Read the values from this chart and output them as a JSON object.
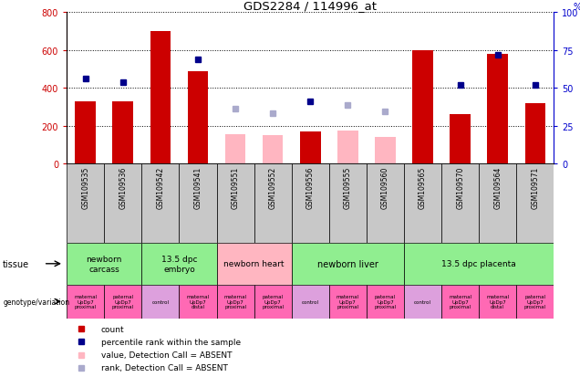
{
  "title": "GDS2284 / 114996_at",
  "samples": [
    "GSM109535",
    "GSM109536",
    "GSM109542",
    "GSM109541",
    "GSM109551",
    "GSM109552",
    "GSM109556",
    "GSM109555",
    "GSM109560",
    "GSM109565",
    "GSM109570",
    "GSM109564",
    "GSM109571"
  ],
  "count_values": [
    330,
    330,
    700,
    490,
    null,
    null,
    170,
    null,
    null,
    600,
    260,
    580,
    320
  ],
  "count_absent": [
    null,
    null,
    null,
    null,
    155,
    150,
    null,
    175,
    140,
    null,
    null,
    null,
    null
  ],
  "rank_values": [
    450,
    430,
    null,
    550,
    null,
    null,
    330,
    null,
    null,
    null,
    415,
    575,
    415
  ],
  "rank_absent": [
    null,
    null,
    null,
    null,
    290,
    265,
    null,
    310,
    275,
    null,
    null,
    null,
    null
  ],
  "ylim_left": [
    0,
    800
  ],
  "ylim_right": [
    0,
    100
  ],
  "yticks_left": [
    0,
    200,
    400,
    600,
    800
  ],
  "yticks_right": [
    0,
    25,
    50,
    75,
    100
  ],
  "tissue_groups": [
    {
      "label": "newborn\ncarcass",
      "start": 0,
      "end": 2,
      "color": "#90EE90"
    },
    {
      "label": "13.5 dpc\nembryo",
      "start": 2,
      "end": 4,
      "color": "#90EE90"
    },
    {
      "label": "newborn heart",
      "start": 4,
      "end": 6,
      "color": "#FFB6C1"
    },
    {
      "label": "newborn liver",
      "start": 6,
      "end": 9,
      "color": "#90EE90"
    },
    {
      "label": "13.5 dpc placenta",
      "start": 9,
      "end": 13,
      "color": "#90EE90"
    }
  ],
  "genotype_labels": [
    "maternal\nUpDp7\nproximal",
    "paternal\nUpDp7\nproximal",
    "control",
    "maternal\nUpDp7\ndistal",
    "maternal\nUpDp7\nproximal",
    "paternal\nUpDp7\nproximal",
    "control",
    "maternal\nUpDp7\nproximal",
    "paternal\nUpDp7\nproximal",
    "control",
    "maternal\nUpDp7\nproximal",
    "maternal\nUpDp7\ndistal",
    "paternal\nUpDp7\nproximal"
  ],
  "genotype_colors": [
    "#FF69B4",
    "#FF69B4",
    "#DDA0DD",
    "#FF69B4",
    "#FF69B4",
    "#FF69B4",
    "#DDA0DD",
    "#FF69B4",
    "#FF69B4",
    "#DDA0DD",
    "#FF69B4",
    "#FF69B4",
    "#FF69B4"
  ],
  "bar_color_red": "#CC0000",
  "bar_color_pink": "#FFB6C1",
  "dot_color_blue": "#00008B",
  "dot_color_lightblue": "#AAAACC",
  "axis_label_color_left": "#CC0000",
  "axis_label_color_right": "#0000CC",
  "legend_items": [
    {
      "color": "#CC0000",
      "label": "count"
    },
    {
      "color": "#00008B",
      "label": "percentile rank within the sample"
    },
    {
      "color": "#FFB6C1",
      "label": "value, Detection Call = ABSENT"
    },
    {
      "color": "#AAAACC",
      "label": "rank, Detection Call = ABSENT"
    }
  ]
}
